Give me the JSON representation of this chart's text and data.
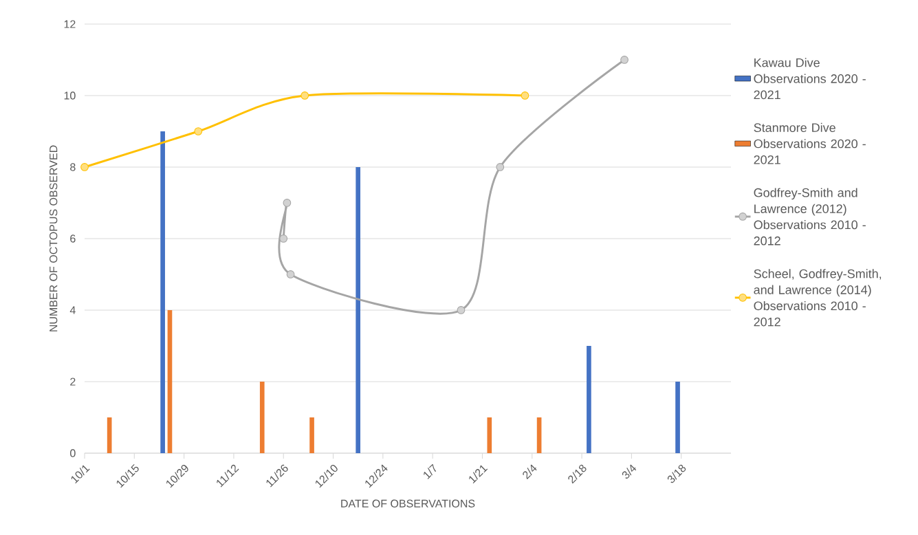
{
  "chart_data": {
    "type": "bar",
    "xlabel": "DATE OF OBSERVATIONS",
    "ylabel": "NUMBER OF OCTOPUS OBSERVED",
    "xlim": [
      "2020-10-01",
      "2021-04-01"
    ],
    "xticks": [
      {
        "value": "2020-10-01",
        "label": "10/1"
      },
      {
        "value": "2020-10-15",
        "label": "10/15"
      },
      {
        "value": "2020-10-29",
        "label": "10/29"
      },
      {
        "value": "2020-11-12",
        "label": "11/12"
      },
      {
        "value": "2020-11-26",
        "label": "11/26"
      },
      {
        "value": "2020-12-10",
        "label": "12/10"
      },
      {
        "value": "2020-12-24",
        "label": "12/24"
      },
      {
        "value": "2021-01-07",
        "label": "1/7"
      },
      {
        "value": "2021-01-21",
        "label": "1/21"
      },
      {
        "value": "2021-02-04",
        "label": "2/4"
      },
      {
        "value": "2021-02-18",
        "label": "2/18"
      },
      {
        "value": "2021-03-04",
        "label": "3/4"
      },
      {
        "value": "2021-03-18",
        "label": "3/18"
      }
    ],
    "ylim": [
      0,
      12
    ],
    "yticks": [
      0,
      2,
      4,
      6,
      8,
      10,
      12
    ],
    "grid": "y",
    "legend": "right",
    "series": [
      {
        "name": "Kawau Dive Observations 2020 - 2021",
        "color": "#4472c4",
        "x": [
          "2020-10-23",
          "2020-12-17",
          "2021-02-20",
          "2021-03-17"
        ],
        "values": [
          9,
          8,
          3,
          2
        ]
      },
      {
        "name": "Stanmore Dive Observations 2020 - 2021",
        "color": "#ed7d31",
        "x": [
          "2020-10-08",
          "2020-10-25",
          "2020-11-20",
          "2020-12-04",
          "2021-01-23",
          "2021-02-06"
        ],
        "values": [
          1,
          4,
          2,
          1,
          1,
          1
        ]
      },
      {
        "name": "Godfrey-Smith and Lawrence (2012) Observations 2010 - 2012",
        "type": "line",
        "color": "#a5a5a5",
        "marker": "circle",
        "x": [
          "2020-11-26",
          "2020-11-27",
          "2020-11-28",
          "2021-01-15",
          "2021-01-26",
          "2021-03-02"
        ],
        "values": [
          6,
          7,
          5,
          4,
          8,
          11
        ]
      },
      {
        "name": "Scheel, Godfrey-Smith, and Lawrence (2014) Observations 2010 - 2012",
        "type": "line",
        "color": "#ffc000",
        "marker": "circle",
        "x": [
          "2020-10-01",
          "2020-11-02",
          "2020-12-02",
          "2021-02-02"
        ],
        "values": [
          8,
          9,
          10,
          10
        ]
      }
    ]
  }
}
